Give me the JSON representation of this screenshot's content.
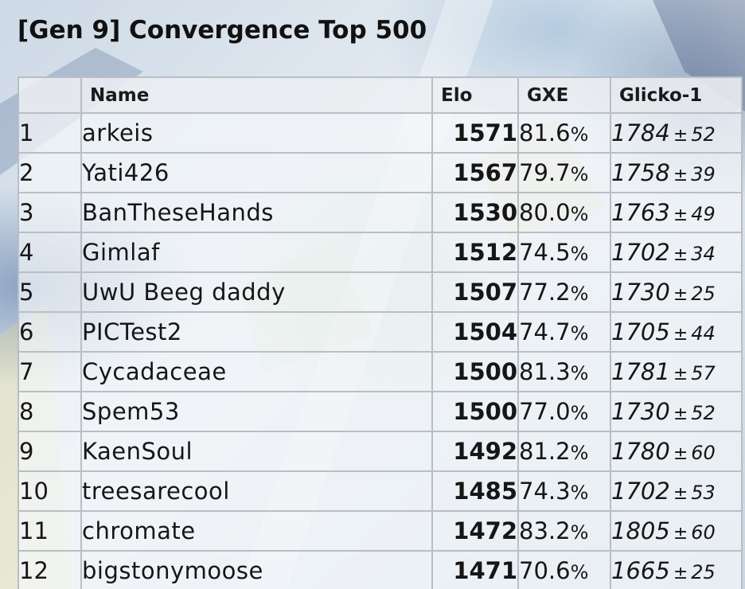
{
  "page": {
    "title": "[Gen 9] Convergence Top 500"
  },
  "table": {
    "headers": {
      "rank": "",
      "name": "Name",
      "elo": "Elo",
      "gxe": "GXE",
      "glicko": "Glicko-1"
    },
    "percent_sign": "%",
    "plus_minus": "±",
    "rows": [
      {
        "rank": "1",
        "name": "arkeis",
        "elo": "1571",
        "gxe": "81.6",
        "glicko": "1784",
        "deviation": "52"
      },
      {
        "rank": "2",
        "name": "Yati426",
        "elo": "1567",
        "gxe": "79.7",
        "glicko": "1758",
        "deviation": "39"
      },
      {
        "rank": "3",
        "name": "BanTheseHands",
        "elo": "1530",
        "gxe": "80.0",
        "glicko": "1763",
        "deviation": "49"
      },
      {
        "rank": "4",
        "name": "Gimlaf",
        "elo": "1512",
        "gxe": "74.5",
        "glicko": "1702",
        "deviation": "34"
      },
      {
        "rank": "5",
        "name": "UwU Beeg daddy",
        "elo": "1507",
        "gxe": "77.2",
        "glicko": "1730",
        "deviation": "25"
      },
      {
        "rank": "6",
        "name": "PICTest2",
        "elo": "1504",
        "gxe": "74.7",
        "glicko": "1705",
        "deviation": "44"
      },
      {
        "rank": "7",
        "name": "Cycadaceae",
        "elo": "1500",
        "gxe": "81.3",
        "glicko": "1781",
        "deviation": "57"
      },
      {
        "rank": "8",
        "name": "Spem53",
        "elo": "1500",
        "gxe": "77.0",
        "glicko": "1730",
        "deviation": "52"
      },
      {
        "rank": "9",
        "name": "KaenSoul",
        "elo": "1492",
        "gxe": "81.2",
        "glicko": "1780",
        "deviation": "60"
      },
      {
        "rank": "10",
        "name": "treesarecool",
        "elo": "1485",
        "gxe": "74.3",
        "glicko": "1702",
        "deviation": "53"
      },
      {
        "rank": "11",
        "name": "chromate",
        "elo": "1472",
        "gxe": "83.2",
        "glicko": "1805",
        "deviation": "60"
      },
      {
        "rank": "12",
        "name": "bigstonymoose",
        "elo": "1471",
        "gxe": "70.6",
        "glicko": "1665",
        "deviation": "25"
      }
    ]
  }
}
